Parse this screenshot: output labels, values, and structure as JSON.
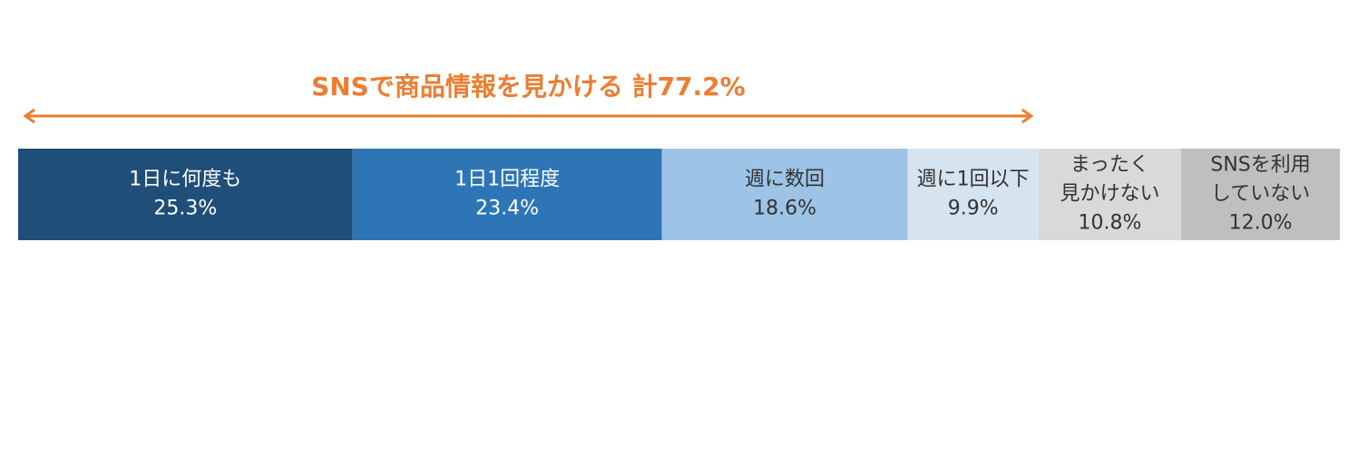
{
  "chart_data": {
    "type": "stacked-bar",
    "annotation": {
      "value": 77.2,
      "label": "SNSで商品情報を見かける 計77.2%",
      "color": "#ed7d31"
    },
    "categories": [
      "1日に何度も",
      "1日1回程度",
      "週に数回",
      "週に1回以下",
      "まったく\n見かけない",
      "SNSを利用\nしていない"
    ],
    "values": [
      25.3,
      23.4,
      18.6,
      9.9,
      10.8,
      12.0
    ],
    "value_labels": [
      "25.3%",
      "23.4%",
      "18.6%",
      "9.9%",
      "10.8%",
      "12.0%"
    ],
    "colors": [
      "#1f4e79",
      "#2e75b6",
      "#9dc3e6",
      "#d6e4f0",
      "#d9d9d9",
      "#bfbfbf"
    ],
    "label_colors": [
      "#ffffff",
      "#ffffff",
      "#333333",
      "#333333",
      "#333333",
      "#333333"
    ],
    "xlim": [
      0,
      100
    ]
  }
}
